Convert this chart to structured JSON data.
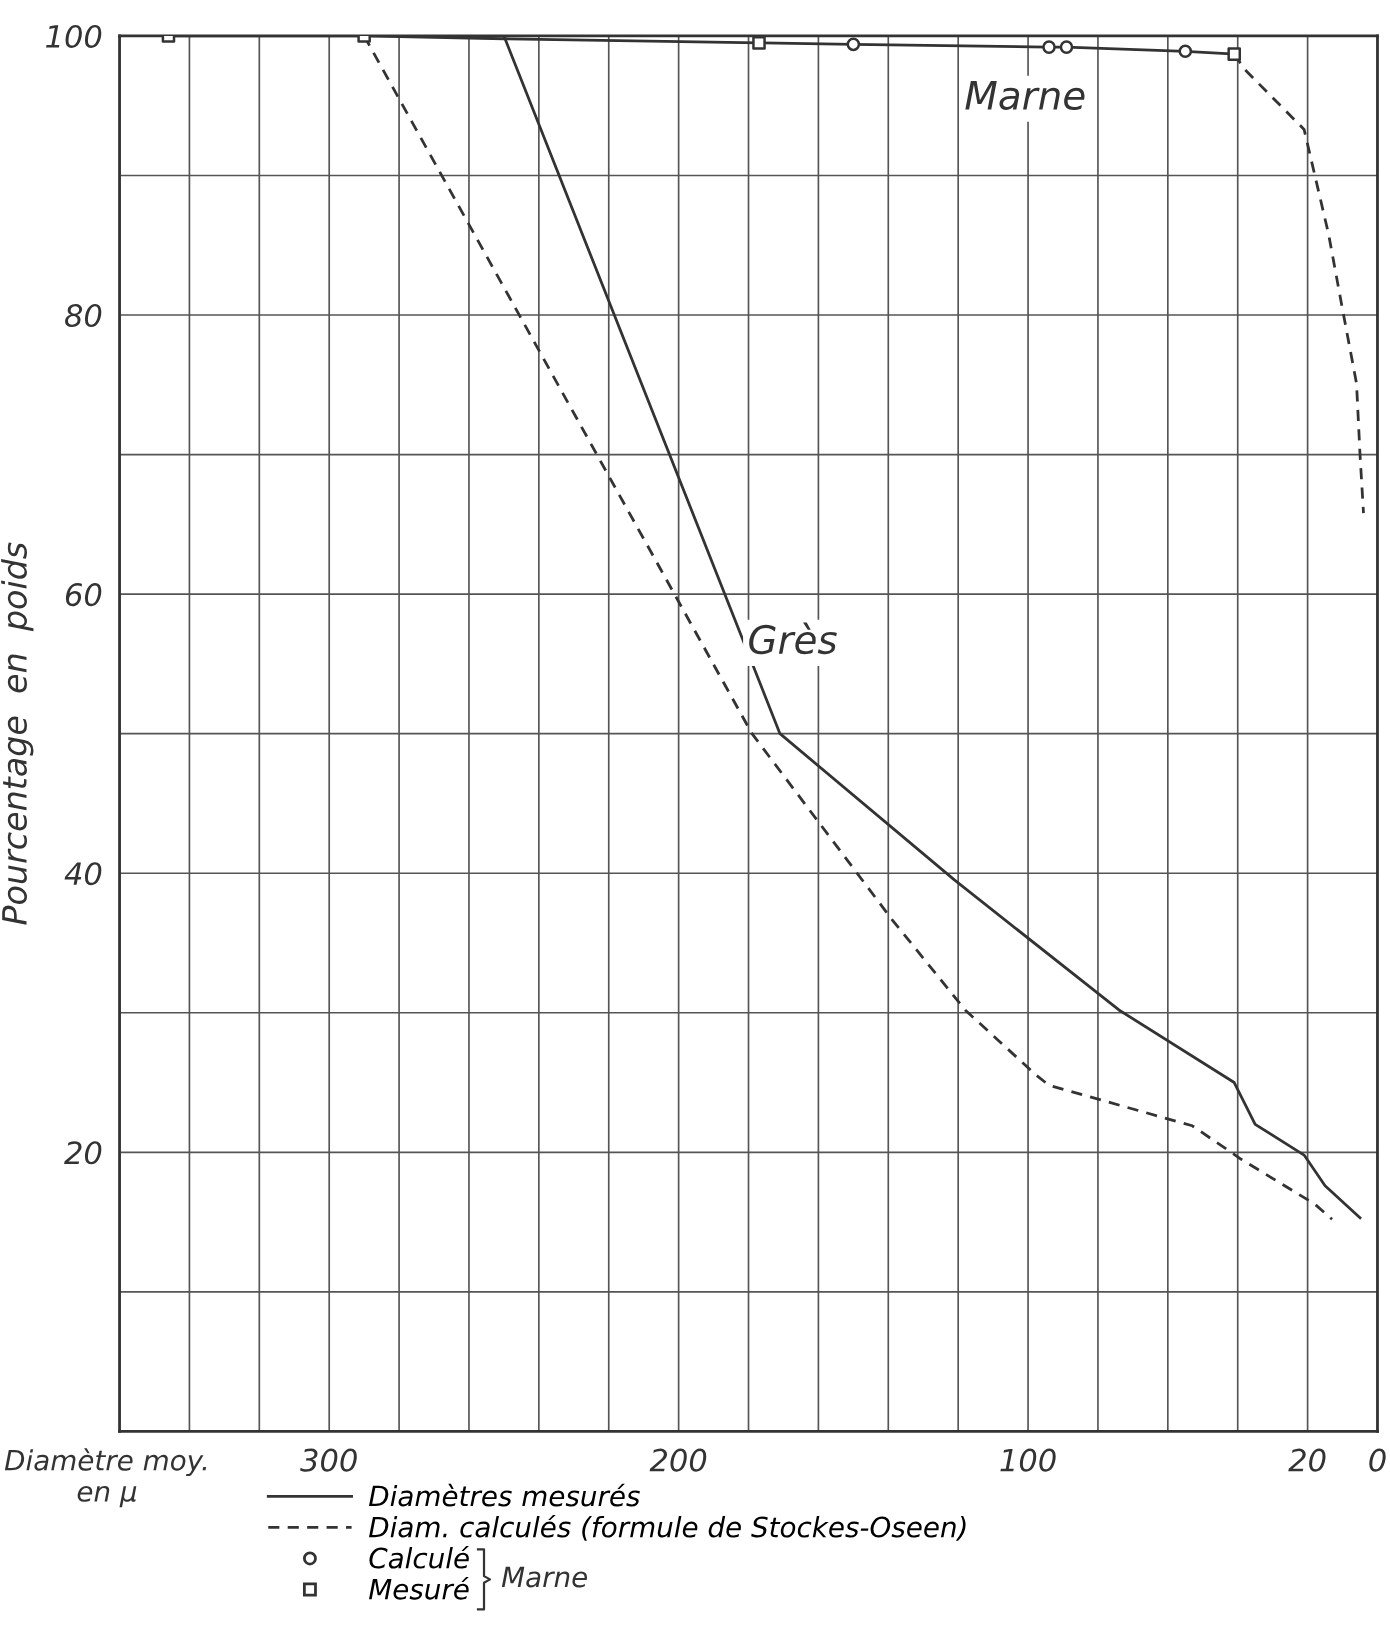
{
  "chart_data": {
    "type": "line",
    "xlabel": "Diamètre moy.\nen µ",
    "ylabel": "Pourcentage  en  poids",
    "xlim": [
      360,
      0
    ],
    "xticks": [
      {
        "value": 360,
        "label": null
      },
      {
        "value": 340,
        "label": null
      },
      {
        "value": 320,
        "label": null
      },
      300,
      {
        "value": 280,
        "label": null
      },
      {
        "value": 260,
        "label": null
      },
      {
        "value": 240,
        "label": null
      },
      {
        "value": 220,
        "label": null
      },
      200,
      {
        "value": 180,
        "label": null
      },
      {
        "value": 160,
        "label": null
      },
      {
        "value": 140,
        "label": null
      },
      {
        "value": 120,
        "label": null
      },
      100,
      {
        "value": 80,
        "label": null
      },
      {
        "value": 60,
        "label": null
      },
      {
        "value": 40,
        "label": null
      },
      20,
      0
    ],
    "ylim": [
      0,
      100
    ],
    "yticks": [
      {
        "value": 0,
        "label": null
      },
      {
        "value": 10,
        "label": null
      },
      20,
      {
        "value": 30,
        "label": null
      },
      40,
      {
        "value": 50,
        "label": null
      },
      60,
      {
        "value": 70,
        "label": null
      },
      80,
      {
        "value": 90,
        "label": null
      },
      100
    ],
    "grid": true,
    "legend": "bottom",
    "series": [
      {
        "name": "Diamètres mesurés",
        "line_style": "solid",
        "color": "#333333",
        "x": [
          250,
          171,
          121,
          74,
          41,
          35,
          21,
          15,
          5
        ],
        "values": [
          100,
          50,
          39.5,
          30.2,
          25,
          22,
          19.8,
          17.6,
          15.3
        ]
      },
      {
        "name": "Diam. calculés (formule de Stockes-Oseen)",
        "line_style": "dashed",
        "color": "#333333",
        "x": [
          290,
          179,
          139,
          118,
          98,
          94,
          53,
          39,
          18,
          13
        ],
        "values": [
          100,
          50,
          36.7,
          30.2,
          25.6,
          24.8,
          21.9,
          19.5,
          16.3,
          15.2
        ]
      },
      {
        "line_style": "solid",
        "color": "#333333",
        "x": [
          346,
          290,
          250,
          177,
          150,
          94,
          89,
          55,
          41
        ],
        "values": [
          100,
          100,
          99.8,
          99.5,
          99.4,
          99.2,
          99.2,
          98.9,
          98.7
        ]
      },
      {
        "line_style": "dashed",
        "color": "#333333",
        "x": [
          41,
          38,
          21,
          14,
          10,
          6,
          5,
          4
        ],
        "values": [
          98.7,
          97.6,
          93.3,
          85.8,
          80.4,
          75.1,
          70,
          65.8
        ]
      },
      {
        "name": "Calculé",
        "type": "scatter",
        "marker": "circle",
        "color": "#333333",
        "x": [
          150,
          94,
          89,
          55
        ],
        "values": [
          99.4,
          99.2,
          99.2,
          98.9
        ]
      },
      {
        "name": "Mesuré",
        "type": "scatter",
        "marker": "square",
        "color": "#333333",
        "x": [
          346,
          290,
          177,
          41
        ],
        "values": [
          100,
          100,
          99.5,
          98.7
        ]
      }
    ],
    "annotations": [
      "Marne",
      "Grès",
      "Marne"
    ]
  }
}
